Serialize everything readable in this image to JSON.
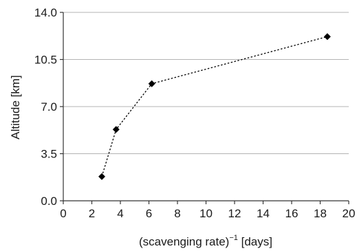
{
  "chart_data": {
    "type": "scatter",
    "title": "",
    "xlabel": {
      "prefix": "(scavenging rate)",
      "superscript": "−1",
      "suffix": " [days]"
    },
    "ylabel": "Altitude [km]",
    "xlim": [
      0,
      20
    ],
    "ylim": [
      0,
      14
    ],
    "x_ticks": [
      0,
      2,
      4,
      6,
      8,
      10,
      12,
      14,
      16,
      18,
      20
    ],
    "x_tick_labels": [
      "0",
      "2",
      "4",
      "6",
      "8",
      "10",
      "12",
      "14",
      "16",
      "18",
      "20"
    ],
    "y_ticks": [
      0,
      3.5,
      7,
      10.5,
      14
    ],
    "y_tick_labels": [
      "0.0",
      "3.5",
      "7.0",
      "10.5",
      "14.0"
    ],
    "grid": "horizontal",
    "legend": "none",
    "series": [
      {
        "marker": "diamond",
        "line": "dotted",
        "color": "#000000",
        "points": [
          {
            "x": 2.7,
            "y": 1.8
          },
          {
            "x": 3.7,
            "y": 5.3
          },
          {
            "x": 6.2,
            "y": 8.7
          },
          {
            "x": 18.5,
            "y": 12.2
          }
        ]
      }
    ]
  }
}
